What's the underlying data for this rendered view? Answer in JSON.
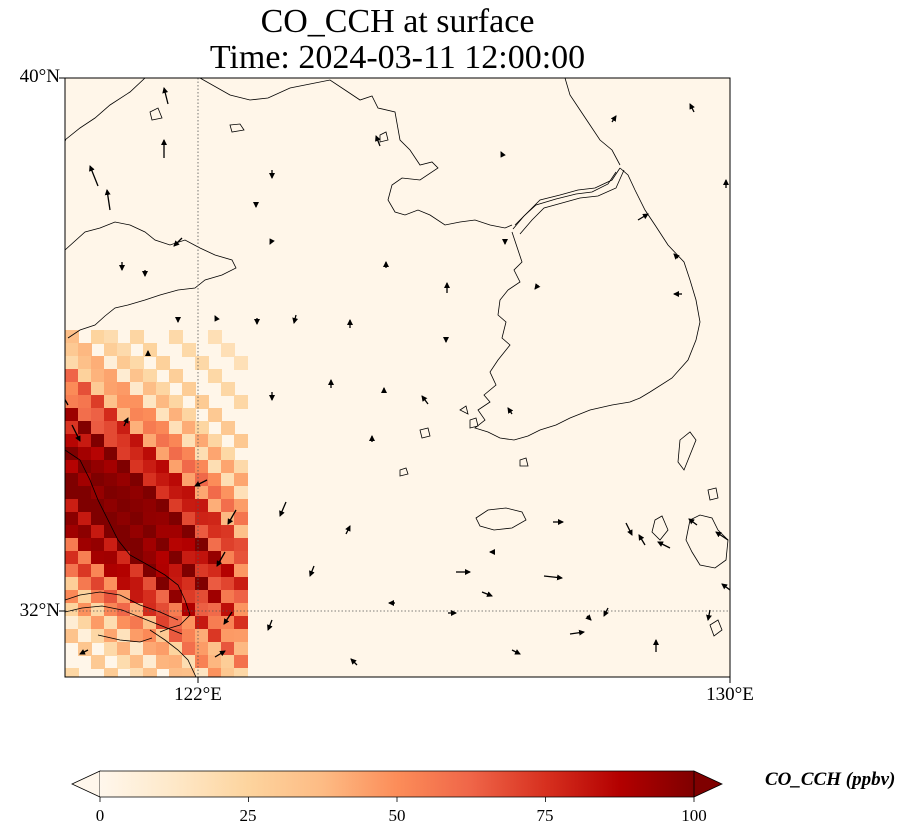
{
  "title": {
    "line1": "CO_CCH at surface",
    "line2": "Time: 2024-03-11 12:00:00"
  },
  "map": {
    "extent": {
      "lon_min": 120,
      "lon_max": 130,
      "lat_min": 31,
      "lat_max": 40
    },
    "lat_ticks": [
      {
        "value": 40,
        "label": "40°N"
      },
      {
        "value": 32,
        "label": "32°N"
      }
    ],
    "lon_ticks": [
      {
        "value": 122,
        "label": "122°E"
      },
      {
        "value": 130,
        "label": "130°E"
      }
    ],
    "gridlines": {
      "lon": [
        122
      ],
      "lat": [
        32
      ],
      "style": "dotted"
    },
    "background_color": "#fff6e9",
    "coastline_color": "#000000"
  },
  "colorbar": {
    "label": "CO_CCH (ppbv)",
    "min": 0,
    "max": 100,
    "ticks": [
      0,
      25,
      50,
      75,
      100
    ],
    "extend": "both",
    "colormap": "OrRd",
    "colors": [
      "#fff7ec",
      "#fee8c8",
      "#fdd49e",
      "#fdbb84",
      "#fc8d59",
      "#ef6548",
      "#d7301f",
      "#b30000",
      "#7f0000"
    ]
  }
}
